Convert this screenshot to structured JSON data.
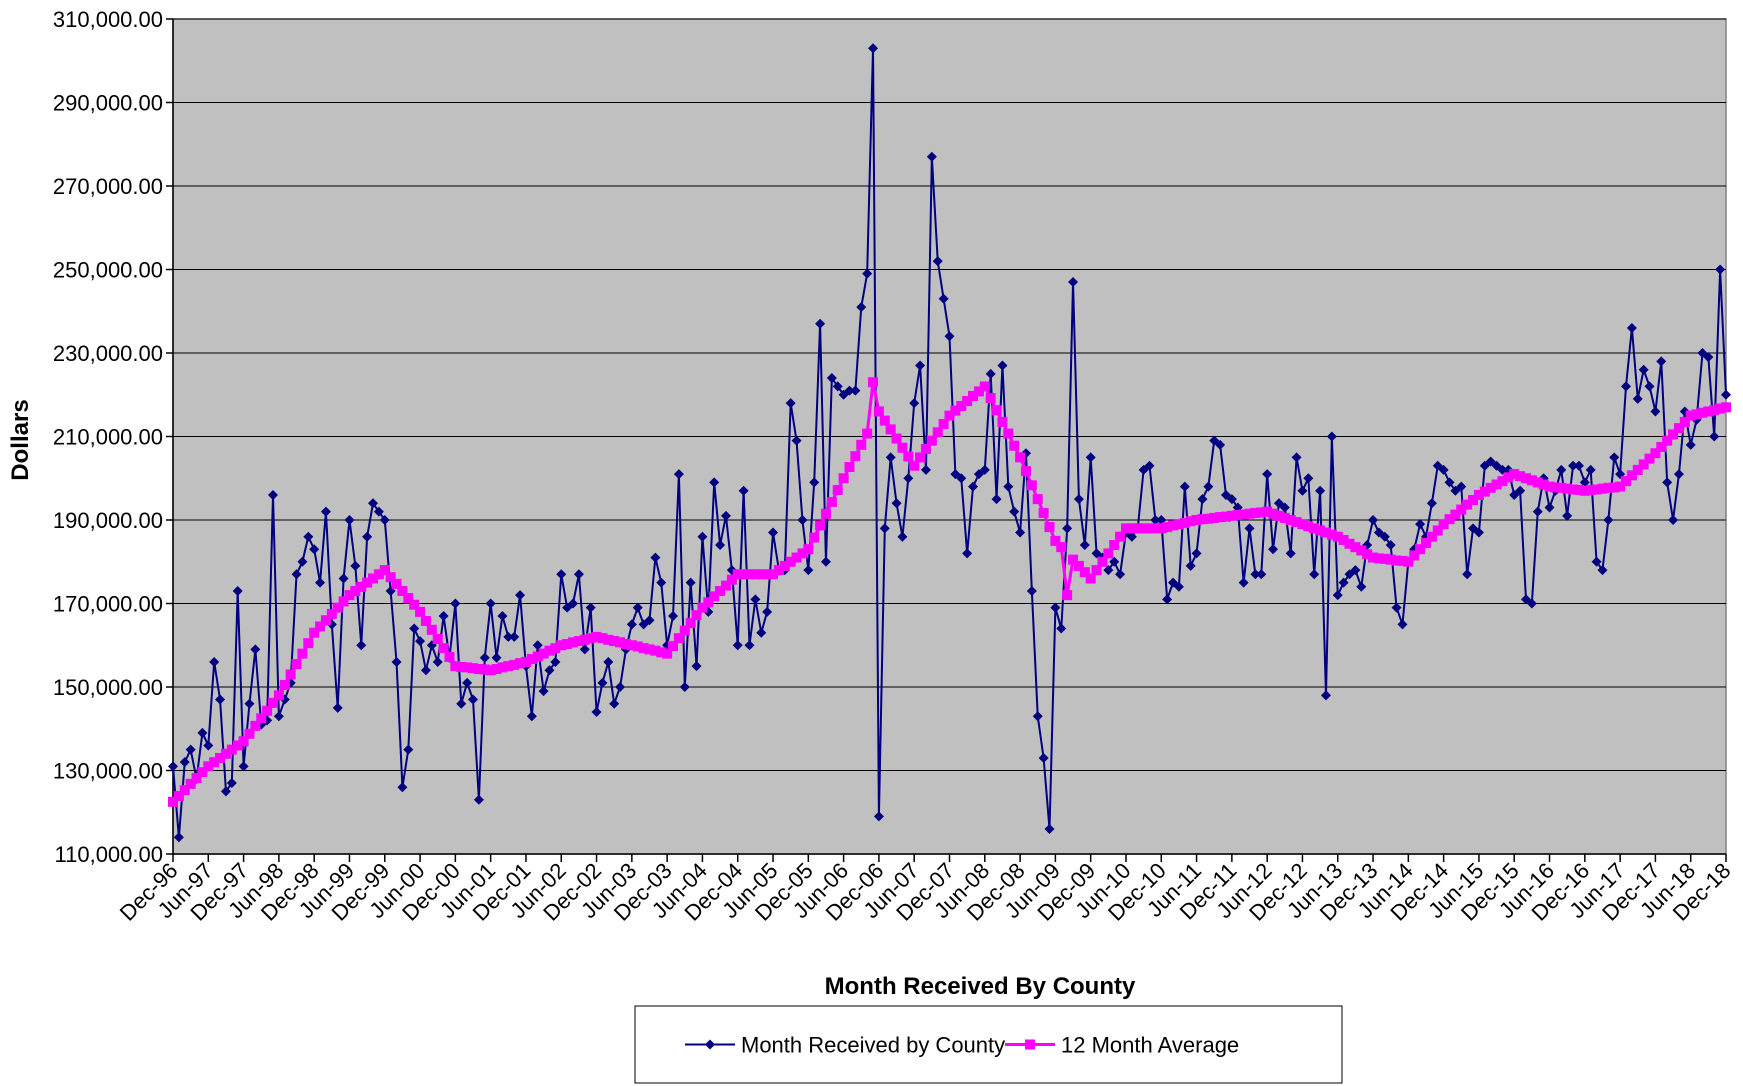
{
  "chart_data": {
    "type": "line",
    "x_label": "Month Received By County",
    "y_label": "Dollars",
    "ylim": [
      110000,
      310000
    ],
    "yticks": [
      {
        "value": 110000,
        "label": "110,000.00"
      },
      {
        "value": 130000,
        "label": "130,000.00"
      },
      {
        "value": 150000,
        "label": "150,000.00"
      },
      {
        "value": 170000,
        "label": "170,000.00"
      },
      {
        "value": 190000,
        "label": "190,000.00"
      },
      {
        "value": 210000,
        "label": "210,000.00"
      },
      {
        "value": 230000,
        "label": "230,000.00"
      },
      {
        "value": 250000,
        "label": "250,000.00"
      },
      {
        "value": 270000,
        "label": "270,000.00"
      },
      {
        "value": 290000,
        "label": "290,000.00"
      },
      {
        "value": 310000,
        "label": "310,000.00"
      }
    ],
    "grid": true,
    "legend": "bottom",
    "background": "#c0c0c0",
    "categories": [
      "Dec-96",
      null,
      null,
      null,
      null,
      null,
      "Jun-97",
      null,
      null,
      null,
      null,
      null,
      "Dec-97",
      null,
      null,
      null,
      null,
      null,
      "Jun-98",
      null,
      null,
      null,
      null,
      null,
      "Dec-98",
      null,
      null,
      null,
      null,
      null,
      "Jun-99",
      null,
      null,
      null,
      null,
      null,
      "Dec-99",
      null,
      null,
      null,
      null,
      null,
      "Jun-00",
      null,
      null,
      null,
      null,
      null,
      "Dec-00",
      null,
      null,
      null,
      null,
      null,
      "Jun-01",
      null,
      null,
      null,
      null,
      null,
      "Dec-01",
      null,
      null,
      null,
      null,
      null,
      "Jun-02",
      null,
      null,
      null,
      null,
      null,
      "Dec-02",
      null,
      null,
      null,
      null,
      null,
      "Jun-03",
      null,
      null,
      null,
      null,
      null,
      "Dec-03",
      null,
      null,
      null,
      null,
      null,
      "Jun-04",
      null,
      null,
      null,
      null,
      null,
      "Dec-04",
      null,
      null,
      null,
      null,
      null,
      "Jun-05",
      null,
      null,
      null,
      null,
      null,
      "Dec-05",
      null,
      null,
      null,
      null,
      null,
      "Jun-06",
      null,
      null,
      null,
      null,
      null,
      "Dec-06",
      null,
      null,
      null,
      null,
      null,
      "Jun-07",
      null,
      null,
      null,
      null,
      null,
      "Dec-07",
      null,
      null,
      null,
      null,
      null,
      "Jun-08",
      null,
      null,
      null,
      null,
      null,
      "Dec-08",
      null,
      null,
      null,
      null,
      null,
      "Jun-09",
      null,
      null,
      null,
      null,
      null,
      "Dec-09",
      null,
      null,
      null,
      null,
      null,
      "Jun-10",
      null,
      null,
      null,
      null,
      null,
      "Dec-10",
      null,
      null,
      null,
      null,
      null,
      "Jun-11",
      null,
      null,
      null,
      null,
      null,
      "Dec-11",
      null,
      null,
      null,
      null,
      null,
      "Jun-12",
      null,
      null,
      null,
      null,
      null,
      "Dec-12",
      null,
      null,
      null,
      null,
      null,
      "Jun-13",
      null,
      null,
      null,
      null,
      null,
      "Dec-13",
      null,
      null,
      null,
      null,
      null,
      "Jun-14",
      null,
      null,
      null,
      null,
      null,
      "Dec-14",
      null,
      null,
      null,
      null,
      null,
      "Jun-15",
      null,
      null,
      null,
      null,
      null,
      "Dec-15",
      null,
      null,
      null,
      null,
      null,
      "Jun-16",
      null,
      null,
      null,
      null,
      null,
      "Dec-16",
      null,
      null,
      null,
      null,
      null,
      "Jun-17",
      null,
      null,
      null,
      null,
      null,
      "Dec-17",
      null,
      null,
      null,
      null,
      null,
      "Jun-18",
      null,
      null,
      null,
      null,
      null,
      "Dec-18"
    ],
    "series": [
      {
        "name": "Month Received by County",
        "color": "#000080",
        "marker": "diamond",
        "values": [
          131000,
          114000,
          132000,
          135000,
          128000,
          139000,
          136000,
          156000,
          147000,
          125000,
          127000,
          173000,
          131000,
          146000,
          159000,
          141000,
          142000,
          196000,
          143000,
          147000,
          151000,
          177000,
          180000,
          186000,
          183000,
          175000,
          192000,
          165000,
          145000,
          176000,
          190000,
          179000,
          160000,
          186000,
          194000,
          192000,
          190000,
          173000,
          156000,
          126000,
          135000,
          164000,
          161000,
          154000,
          160000,
          156000,
          167000,
          157000,
          170000,
          146000,
          151000,
          147000,
          123000,
          157000,
          170000,
          157000,
          167000,
          162000,
          162000,
          172000,
          155000,
          143000,
          160000,
          149000,
          154000,
          156000,
          177000,
          169000,
          170000,
          177000,
          159000,
          169000,
          144000,
          151000,
          156000,
          146000,
          150000,
          159000,
          165000,
          169000,
          165000,
          166000,
          181000,
          175000,
          160000,
          167000,
          201000,
          150000,
          175000,
          155000,
          186000,
          168000,
          199000,
          184000,
          191000,
          178000,
          160000,
          197000,
          160000,
          171000,
          163000,
          168000,
          187000,
          178000,
          178000,
          218000,
          209000,
          190000,
          178000,
          199000,
          237000,
          180000,
          224000,
          222000,
          220000,
          221000,
          221000,
          241000,
          249000,
          303000,
          119000,
          188000,
          205000,
          194000,
          186000,
          200000,
          218000,
          227000,
          202000,
          277000,
          252000,
          243000,
          234000,
          201000,
          200000,
          182000,
          198000,
          201000,
          202000,
          225000,
          195000,
          227000,
          198000,
          192000,
          187000,
          206000,
          173000,
          143000,
          133000,
          116000,
          169000,
          164000,
          188000,
          247000,
          195000,
          184000,
          205000,
          182000,
          181000,
          178000,
          180000,
          177000,
          187000,
          186000,
          188000,
          202000,
          203000,
          190000,
          190000,
          171000,
          175000,
          174000,
          198000,
          179000,
          182000,
          195000,
          198000,
          209000,
          208000,
          196000,
          195000,
          193000,
          175000,
          188000,
          177000,
          177000,
          201000,
          183000,
          194000,
          193000,
          182000,
          205000,
          197000,
          200000,
          177000,
          197000,
          148000,
          210000,
          172000,
          175000,
          177000,
          178000,
          174000,
          184000,
          190000,
          187000,
          186000,
          184000,
          169000,
          165000,
          180000,
          183000,
          189000,
          186000,
          194000,
          203000,
          202000,
          199000,
          197000,
          198000,
          177000,
          188000,
          187000,
          203000,
          204000,
          203000,
          202000,
          202000,
          196000,
          197000,
          171000,
          170000,
          192000,
          200000,
          193000,
          197000,
          202000,
          191000,
          203000,
          203000,
          199000,
          202000,
          180000,
          178000,
          190000,
          205000,
          201000,
          222000,
          236000,
          219000,
          226000,
          222000,
          216000,
          228000,
          199000,
          190000,
          201000,
          216000,
          208000,
          214000,
          230000,
          229000,
          210000,
          250000,
          220000
        ]
      },
      {
        "name": "12 Month Average",
        "color": "#ff00ff",
        "marker": "square",
        "values": [
          122500,
          123900,
          125300,
          126800,
          128200,
          129600,
          131000,
          132000,
          133000,
          134000,
          135000,
          136000,
          137000,
          138800,
          140700,
          142500,
          144300,
          146200,
          148000,
          150500,
          153000,
          155500,
          158000,
          160500,
          163000,
          164500,
          166000,
          167500,
          169000,
          170500,
          172000,
          173000,
          174000,
          175000,
          176000,
          177000,
          178000,
          176300,
          174700,
          173000,
          171300,
          169700,
          168000,
          165800,
          163700,
          161500,
          159300,
          157200,
          155000,
          154800,
          154700,
          154500,
          154300,
          154200,
          154000,
          154300,
          154700,
          155000,
          155300,
          155700,
          156000,
          156700,
          157300,
          158000,
          158700,
          159300,
          160000,
          160300,
          160700,
          161000,
          161300,
          161700,
          162000,
          161700,
          161300,
          161000,
          160700,
          160300,
          160000,
          159700,
          159300,
          159000,
          158700,
          158300,
          158000,
          159800,
          161700,
          163500,
          165300,
          167200,
          169000,
          170300,
          171700,
          173000,
          174300,
          175700,
          177000,
          177000,
          177000,
          177000,
          177000,
          177000,
          177000,
          178000,
          179000,
          180000,
          181000,
          182000,
          183000,
          185800,
          188700,
          191500,
          194300,
          197200,
          200000,
          202700,
          205300,
          208000,
          210700,
          223000,
          216000,
          213800,
          211700,
          209500,
          207300,
          205200,
          203000,
          205000,
          207000,
          209000,
          211000,
          213000,
          215000,
          216200,
          217300,
          218500,
          219700,
          220800,
          222000,
          219200,
          216300,
          213500,
          210700,
          207800,
          205000,
          201700,
          198300,
          195000,
          191700,
          188300,
          185000,
          183500,
          172000,
          180500,
          179000,
          177500,
          176000,
          178000,
          180000,
          182000,
          184000,
          186000,
          188000,
          188000,
          188000,
          188000,
          188000,
          188000,
          188000,
          188300,
          188700,
          189000,
          189300,
          189700,
          190000,
          190200,
          190300,
          190500,
          190700,
          190800,
          191000,
          191200,
          191300,
          191500,
          191700,
          191800,
          192000,
          191500,
          191000,
          190500,
          190000,
          189500,
          189000,
          188500,
          188000,
          187500,
          187000,
          186500,
          186000,
          185200,
          184300,
          183500,
          182700,
          181800,
          181000,
          180800,
          180700,
          180500,
          180300,
          180200,
          180000,
          181500,
          183000,
          184500,
          186000,
          187500,
          189000,
          190200,
          191300,
          192500,
          193700,
          194800,
          196000,
          196800,
          197700,
          198500,
          199300,
          200200,
          201000,
          200500,
          200000,
          199500,
          199000,
          198500,
          198000,
          197800,
          197700,
          197500,
          197300,
          197200,
          197000,
          197200,
          197300,
          197500,
          197700,
          197800,
          198000,
          199300,
          200700,
          202000,
          203300,
          204700,
          206000,
          207500,
          209000,
          210500,
          212000,
          213500,
          215000,
          215300,
          215700,
          216000,
          216300,
          216700,
          217000
        ]
      }
    ]
  }
}
